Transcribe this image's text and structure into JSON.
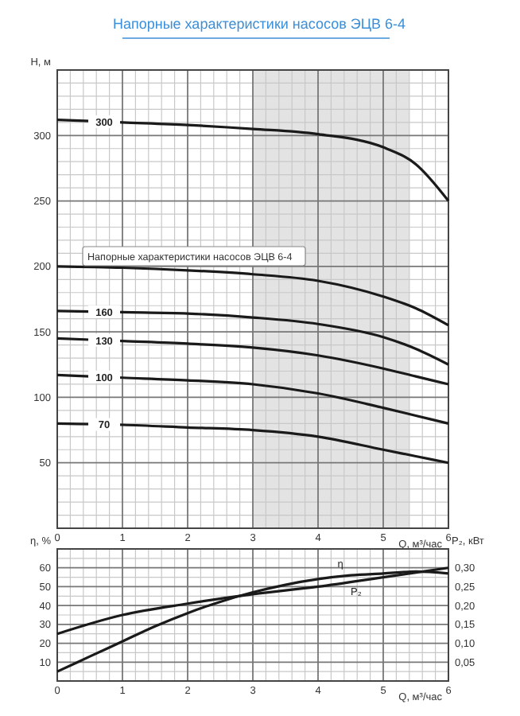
{
  "chart_data": [
    {
      "type": "line",
      "title": "Напорные характеристики насосов ЭЦВ 6-4",
      "xlabel": "Q, м³/час",
      "ylabel": "H, м",
      "x": [
        0,
        1,
        2,
        3,
        4,
        5,
        5.5,
        6
      ],
      "xlim": [
        0,
        6
      ],
      "xticks": [
        0,
        1,
        2,
        3,
        4,
        5,
        6
      ],
      "ylim": [
        0,
        350
      ],
      "yticks": [
        50,
        100,
        150,
        200,
        250,
        300
      ],
      "grid": true,
      "line_style": "solid",
      "marker": "none",
      "series": [
        {
          "name": "300",
          "color": "#1a1a1a",
          "values": [
            312,
            310,
            308,
            305,
            301,
            291,
            278,
            250
          ]
        },
        {
          "color": "#1a1a1a",
          "values": [
            200,
            199,
            197,
            194,
            189,
            177,
            168,
            155
          ]
        },
        {
          "name": "160",
          "color": "#1a1a1a",
          "values": [
            166,
            165,
            164,
            161,
            156,
            146,
            137,
            125
          ]
        },
        {
          "name": "130",
          "color": "#1a1a1a",
          "values": [
            145,
            143,
            141,
            138,
            132,
            122,
            116,
            110
          ]
        },
        {
          "name": "100",
          "color": "#1a1a1a",
          "values": [
            117,
            115,
            113,
            110,
            103,
            92,
            86,
            80
          ]
        },
        {
          "name": "70",
          "color": "#1a1a1a",
          "values": [
            80,
            79,
            77,
            75,
            70,
            60,
            55,
            50
          ]
        }
      ],
      "bands": [
        {
          "axis": "x",
          "from": 3,
          "to": 5.4,
          "color": "#e3e3e3"
        }
      ],
      "annotations": [
        "Напорные характеристики насосов ЭЦВ 6-4"
      ]
    },
    {
      "type": "line",
      "xlabel": "Q, м³/час",
      "ylabel": "η, %",
      "y2label": "P₂, кВт",
      "x": [
        0,
        0.5,
        1,
        1.5,
        2,
        2.5,
        3,
        3.5,
        4,
        4.5,
        5,
        5.5,
        6
      ],
      "xlim": [
        0,
        6
      ],
      "xticks": [
        0,
        1,
        2,
        3,
        4,
        5,
        6
      ],
      "ylim": [
        0,
        70
      ],
      "yticks": [
        10,
        20,
        30,
        40,
        50,
        60
      ],
      "y2lim": [
        0,
        0.35
      ],
      "y2ticks": [
        {
          "value": 0.05,
          "label": "0,05"
        },
        {
          "value": 0.1,
          "label": "0,10"
        },
        {
          "value": 0.15,
          "label": "0,15"
        },
        {
          "value": 0.2,
          "label": "0,20"
        },
        {
          "value": 0.25,
          "label": "0,25"
        },
        {
          "value": 0.3,
          "label": "0,30"
        }
      ],
      "grid": true,
      "line_style": "solid",
      "marker": "none",
      "series": [
        {
          "name": "η",
          "color": "#1a1a1a",
          "values": [
            5,
            13,
            21,
            29,
            36,
            42,
            47,
            51,
            54,
            56,
            57,
            58,
            57
          ]
        },
        {
          "name": "P₂",
          "color": "#1a1a1a",
          "axis": "y2",
          "x": [
            0,
            1,
            2,
            3,
            4,
            5,
            6
          ],
          "values": [
            0.125,
            0.175,
            0.205,
            0.23,
            0.25,
            0.275,
            0.3
          ]
        }
      ]
    }
  ]
}
